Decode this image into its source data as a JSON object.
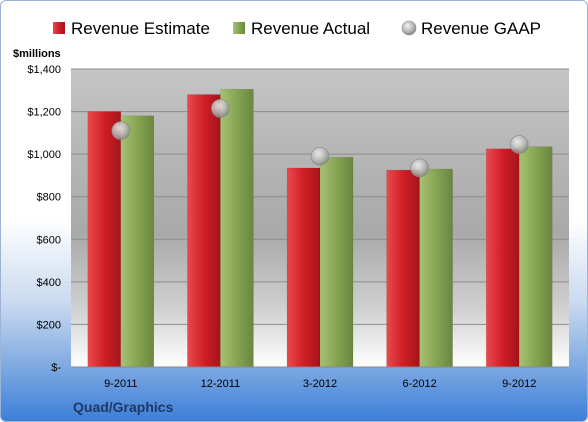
{
  "chart_data": {
    "type": "bar",
    "title": "",
    "unit_label": "$millions",
    "company": "Quad/Graphics",
    "categories": [
      "9-2011",
      "12-2011",
      "3-2012",
      "6-2012",
      "9-2012"
    ],
    "series": [
      {
        "name": "Revenue Estimate",
        "kind": "bar",
        "color": "#d92027",
        "values": [
          1200,
          1280,
          935,
          925,
          1025
        ]
      },
      {
        "name": "Revenue Actual",
        "kind": "bar",
        "color": "#8cab57",
        "values": [
          1180,
          1305,
          985,
          930,
          1035
        ]
      },
      {
        "name": "Revenue GAAP",
        "kind": "marker",
        "color": "#b8b8b8",
        "values": [
          1110,
          1215,
          990,
          935,
          1045
        ]
      }
    ],
    "ylim": [
      0,
      1400
    ],
    "yticks": [
      0,
      200,
      400,
      600,
      800,
      1000,
      1200,
      1400
    ],
    "ytick_labels": [
      "$-",
      "$200",
      "$400",
      "$600",
      "$800",
      "$1,000",
      "$1,200",
      "$1,400"
    ],
    "grid": true,
    "legend_position": "top"
  }
}
